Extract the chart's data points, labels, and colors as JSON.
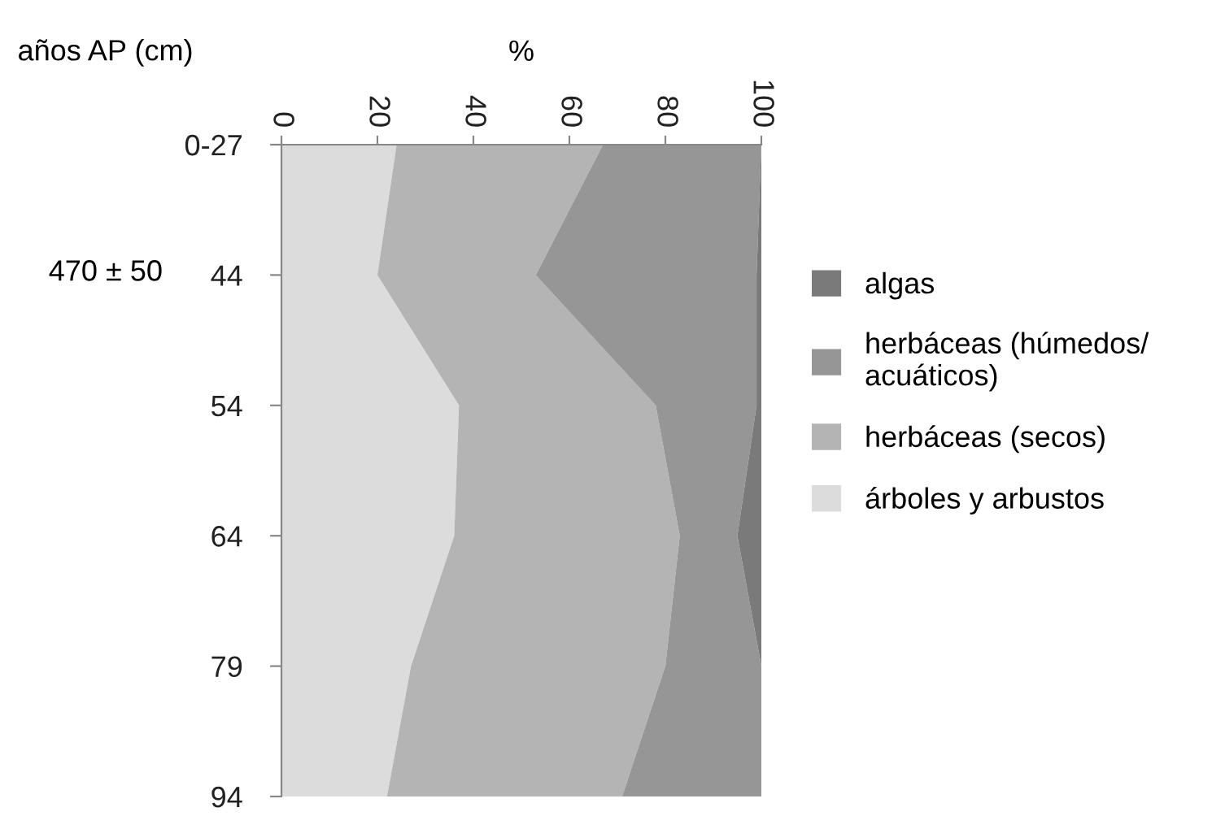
{
  "chart_data": {
    "type": "area",
    "stacked": true,
    "orientation": "horizontal",
    "xlabel": "%",
    "ylabel": "años AP (cm)",
    "categories": [
      "0-27",
      "44",
      "54",
      "64",
      "79",
      "94"
    ],
    "series": [
      {
        "name": "árboles y arbustos",
        "color": "#dcdcdc",
        "values": [
          24,
          20,
          37,
          36,
          27,
          22
        ]
      },
      {
        "name": "herbáceas (secos)",
        "color": "#b4b4b4",
        "values": [
          43,
          33,
          41,
          47,
          53,
          49
        ]
      },
      {
        "name": "herbáceas (húmedos/\nacuáticos)",
        "color": "#969696",
        "values": [
          33,
          46,
          21,
          12,
          20,
          29
        ]
      },
      {
        "name": "algas",
        "color": "#7a7a7a",
        "values": [
          0,
          1,
          1,
          5,
          0,
          0
        ]
      }
    ],
    "xlim": [
      0,
      100
    ],
    "xticks": [
      0,
      20,
      40,
      60,
      80,
      100
    ],
    "annotations": [
      "470 ± 50"
    ],
    "grid": false,
    "legend": "right"
  }
}
